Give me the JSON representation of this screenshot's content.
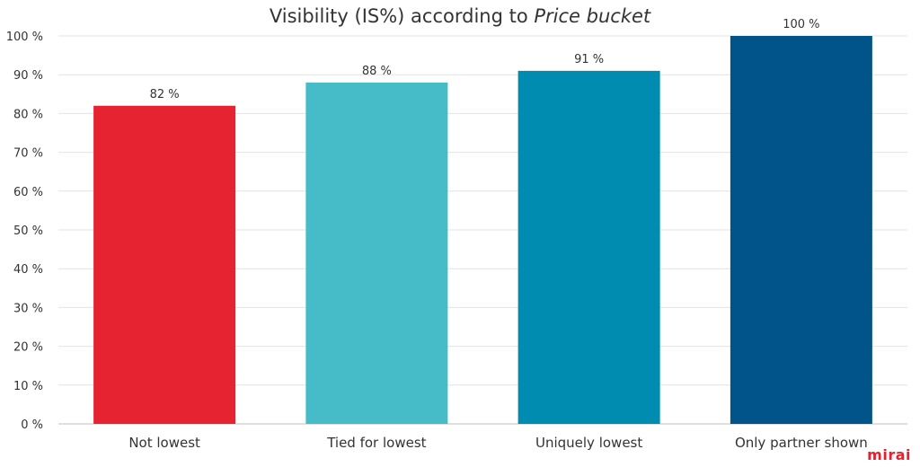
{
  "chart_data": {
    "type": "bar",
    "title": "Visibility (IS%) according to",
    "title_emphasis": "Price bucket",
    "xlabel": "",
    "ylabel": "",
    "categories": [
      "Not lowest",
      "Tied for lowest",
      "Uniquely lowest",
      "Only partner shown"
    ],
    "values": [
      82,
      88,
      91,
      100
    ],
    "value_labels": [
      "82 %",
      "88 %",
      "91 %",
      "100 %"
    ],
    "colors": [
      "#e52331",
      "#46bcc9",
      "#008bb0",
      "#00548a"
    ],
    "ylim": [
      0,
      100
    ],
    "yticks": [
      0,
      10,
      20,
      30,
      40,
      50,
      60,
      70,
      80,
      90,
      100
    ],
    "ytick_labels": [
      "0 %",
      "10 %",
      "20 %",
      "30 %",
      "40 %",
      "50 %",
      "60 %",
      "70 %",
      "80 %",
      "90 %",
      "100 %"
    ],
    "grid": true,
    "legend": false
  },
  "brand": {
    "logo_text": "mirai",
    "logo_color": "#e5202f"
  }
}
